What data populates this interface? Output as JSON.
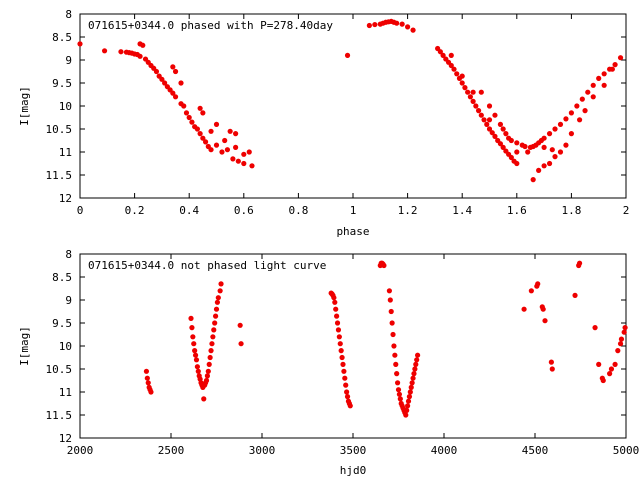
{
  "chart_data": [
    {
      "type": "scatter",
      "title": "071615+0344.0 phased with P=278.40day",
      "xlabel": "phase",
      "ylabel": "I[mag]",
      "xlim": [
        0,
        2
      ],
      "ylim": [
        12,
        8
      ],
      "y_inverted": true,
      "xticks": [
        "0",
        "0.2",
        "0.4",
        "0.6",
        "0.8",
        "1",
        "1.2",
        "1.4",
        "1.6",
        "1.8",
        "2"
      ],
      "yticks": [
        "8",
        "8.5",
        "9",
        "9.5",
        "10",
        "10.5",
        "11",
        "11.5",
        "12"
      ],
      "grid": false,
      "color": "#ee0000",
      "points": [
        [
          0.0,
          8.65
        ],
        [
          0.09,
          8.8
        ],
        [
          0.15,
          8.82
        ],
        [
          0.17,
          8.83
        ],
        [
          0.18,
          8.84
        ],
        [
          0.19,
          8.85
        ],
        [
          0.2,
          8.87
        ],
        [
          0.21,
          8.88
        ],
        [
          0.22,
          8.65
        ],
        [
          0.23,
          8.68
        ],
        [
          0.22,
          8.92
        ],
        [
          0.24,
          8.98
        ],
        [
          0.25,
          9.05
        ],
        [
          0.26,
          9.12
        ],
        [
          0.27,
          9.18
        ],
        [
          0.28,
          9.25
        ],
        [
          0.29,
          9.35
        ],
        [
          0.3,
          9.42
        ],
        [
          0.31,
          9.5
        ],
        [
          0.32,
          9.58
        ],
        [
          0.33,
          9.65
        ],
        [
          0.34,
          9.72
        ],
        [
          0.35,
          9.8
        ],
        [
          0.34,
          9.15
        ],
        [
          0.35,
          9.25
        ],
        [
          0.37,
          9.5
        ],
        [
          0.37,
          9.95
        ],
        [
          0.38,
          10.0
        ],
        [
          0.39,
          10.15
        ],
        [
          0.4,
          10.25
        ],
        [
          0.41,
          10.35
        ],
        [
          0.42,
          10.45
        ],
        [
          0.43,
          10.5
        ],
        [
          0.44,
          10.6
        ],
        [
          0.45,
          10.7
        ],
        [
          0.46,
          10.78
        ],
        [
          0.47,
          10.88
        ],
        [
          0.48,
          10.95
        ],
        [
          0.44,
          10.05
        ],
        [
          0.45,
          10.15
        ],
        [
          0.48,
          10.55
        ],
        [
          0.5,
          10.4
        ],
        [
          0.5,
          10.85
        ],
        [
          0.52,
          11.0
        ],
        [
          0.53,
          10.75
        ],
        [
          0.54,
          10.95
        ],
        [
          0.56,
          11.15
        ],
        [
          0.57,
          10.9
        ],
        [
          0.58,
          11.2
        ],
        [
          0.6,
          11.05
        ],
        [
          0.6,
          11.25
        ],
        [
          0.62,
          11.0
        ],
        [
          0.63,
          11.3
        ],
        [
          0.55,
          10.55
        ],
        [
          0.57,
          10.6
        ],
        [
          0.98,
          8.9
        ],
        [
          1.06,
          8.25
        ],
        [
          1.08,
          8.23
        ],
        [
          1.1,
          8.22
        ],
        [
          1.11,
          8.2
        ],
        [
          1.12,
          8.18
        ],
        [
          1.13,
          8.17
        ],
        [
          1.14,
          8.16
        ],
        [
          1.15,
          8.18
        ],
        [
          1.16,
          8.2
        ],
        [
          1.18,
          8.22
        ],
        [
          1.2,
          8.28
        ],
        [
          1.22,
          8.35
        ],
        [
          1.31,
          8.75
        ],
        [
          1.32,
          8.82
        ],
        [
          1.33,
          8.9
        ],
        [
          1.34,
          8.98
        ],
        [
          1.35,
          9.05
        ],
        [
          1.36,
          9.12
        ],
        [
          1.37,
          9.2
        ],
        [
          1.38,
          9.3
        ],
        [
          1.39,
          9.4
        ],
        [
          1.4,
          9.5
        ],
        [
          1.41,
          9.6
        ],
        [
          1.42,
          9.7
        ],
        [
          1.43,
          9.8
        ],
        [
          1.44,
          9.9
        ],
        [
          1.45,
          10.0
        ],
        [
          1.46,
          10.1
        ],
        [
          1.47,
          10.2
        ],
        [
          1.48,
          10.3
        ],
        [
          1.49,
          10.4
        ],
        [
          1.5,
          10.5
        ],
        [
          1.51,
          10.58
        ],
        [
          1.52,
          10.66
        ],
        [
          1.53,
          10.75
        ],
        [
          1.54,
          10.82
        ],
        [
          1.55,
          10.9
        ],
        [
          1.56,
          10.98
        ],
        [
          1.57,
          11.05
        ],
        [
          1.58,
          11.12
        ],
        [
          1.59,
          11.2
        ],
        [
          1.6,
          11.25
        ],
        [
          1.47,
          9.7
        ],
        [
          1.5,
          10.0
        ],
        [
          1.52,
          10.2
        ],
        [
          1.54,
          10.4
        ],
        [
          1.55,
          10.5
        ],
        [
          1.56,
          10.6
        ],
        [
          1.57,
          10.7
        ],
        [
          1.58,
          10.75
        ],
        [
          1.6,
          10.8
        ],
        [
          1.62,
          10.85
        ],
        [
          1.63,
          10.88
        ],
        [
          1.65,
          10.9
        ],
        [
          1.66,
          10.88
        ],
        [
          1.67,
          10.85
        ],
        [
          1.68,
          10.8
        ],
        [
          1.69,
          10.75
        ],
        [
          1.7,
          10.7
        ],
        [
          1.72,
          10.6
        ],
        [
          1.74,
          10.5
        ],
        [
          1.76,
          10.4
        ],
        [
          1.78,
          10.28
        ],
        [
          1.8,
          10.15
        ],
        [
          1.82,
          10.0
        ],
        [
          1.84,
          9.85
        ],
        [
          1.86,
          9.7
        ],
        [
          1.88,
          9.55
        ],
        [
          1.9,
          9.4
        ],
        [
          1.92,
          9.3
        ],
        [
          1.94,
          9.2
        ],
        [
          1.96,
          9.1
        ],
        [
          1.98,
          8.95
        ],
        [
          1.66,
          11.6
        ],
        [
          1.68,
          11.4
        ],
        [
          1.7,
          11.3
        ],
        [
          1.72,
          11.25
        ],
        [
          1.74,
          11.1
        ],
        [
          1.76,
          11.0
        ],
        [
          1.78,
          10.85
        ],
        [
          1.8,
          10.6
        ],
        [
          1.83,
          10.3
        ],
        [
          1.85,
          10.1
        ],
        [
          1.88,
          9.8
        ],
        [
          1.92,
          9.55
        ],
        [
          1.95,
          9.2
        ],
        [
          1.36,
          8.9
        ],
        [
          1.4,
          9.35
        ],
        [
          1.44,
          9.7
        ],
        [
          1.5,
          10.3
        ],
        [
          1.6,
          11.0
        ],
        [
          1.64,
          11.0
        ],
        [
          1.7,
          10.9
        ],
        [
          1.73,
          10.95
        ]
      ]
    },
    {
      "type": "scatter",
      "title": "071615+0344.0 not phased light curve",
      "xlabel": "hjd0",
      "ylabel": "I[mag]",
      "xlim": [
        2000,
        5000
      ],
      "ylim": [
        12,
        8
      ],
      "y_inverted": true,
      "xticks": [
        "2000",
        "2500",
        "3000",
        "3500",
        "4000",
        "4500",
        "5000"
      ],
      "yticks": [
        "8",
        "8.5",
        "9",
        "9.5",
        "10",
        "10.5",
        "11",
        "11.5",
        "12"
      ],
      "grid": false,
      "color": "#ee0000",
      "points": [
        [
          2365,
          10.55
        ],
        [
          2370,
          10.7
        ],
        [
          2375,
          10.8
        ],
        [
          2380,
          10.9
        ],
        [
          2385,
          10.95
        ],
        [
          2390,
          11.0
        ],
        [
          2610,
          9.4
        ],
        [
          2615,
          9.6
        ],
        [
          2620,
          9.8
        ],
        [
          2625,
          9.95
        ],
        [
          2630,
          10.1
        ],
        [
          2635,
          10.2
        ],
        [
          2640,
          10.3
        ],
        [
          2645,
          10.45
        ],
        [
          2650,
          10.55
        ],
        [
          2655,
          10.65
        ],
        [
          2660,
          10.72
        ],
        [
          2665,
          10.8
        ],
        [
          2670,
          10.85
        ],
        [
          2675,
          10.9
        ],
        [
          2680,
          11.15
        ],
        [
          2685,
          10.85
        ],
        [
          2690,
          10.8
        ],
        [
          2695,
          10.75
        ],
        [
          2700,
          10.65
        ],
        [
          2705,
          10.55
        ],
        [
          2710,
          10.4
        ],
        [
          2715,
          10.25
        ],
        [
          2720,
          10.1
        ],
        [
          2725,
          9.95
        ],
        [
          2730,
          9.8
        ],
        [
          2735,
          9.65
        ],
        [
          2740,
          9.5
        ],
        [
          2745,
          9.35
        ],
        [
          2750,
          9.2
        ],
        [
          2755,
          9.05
        ],
        [
          2760,
          8.95
        ],
        [
          2770,
          8.8
        ],
        [
          2775,
          8.65
        ],
        [
          2880,
          9.55
        ],
        [
          2885,
          9.95
        ],
        [
          3380,
          8.85
        ],
        [
          3385,
          8.87
        ],
        [
          3390,
          8.9
        ],
        [
          3395,
          8.95
        ],
        [
          3400,
          9.05
        ],
        [
          3405,
          9.2
        ],
        [
          3410,
          9.35
        ],
        [
          3415,
          9.5
        ],
        [
          3420,
          9.65
        ],
        [
          3425,
          9.8
        ],
        [
          3430,
          9.95
        ],
        [
          3435,
          10.1
        ],
        [
          3440,
          10.25
        ],
        [
          3445,
          10.4
        ],
        [
          3450,
          10.55
        ],
        [
          3455,
          10.7
        ],
        [
          3460,
          10.85
        ],
        [
          3465,
          11.0
        ],
        [
          3470,
          11.1
        ],
        [
          3475,
          11.2
        ],
        [
          3480,
          11.25
        ],
        [
          3485,
          11.3
        ],
        [
          3650,
          8.25
        ],
        [
          3655,
          8.2
        ],
        [
          3660,
          8.2
        ],
        [
          3665,
          8.22
        ],
        [
          3670,
          8.25
        ],
        [
          3700,
          8.8
        ],
        [
          3705,
          9.0
        ],
        [
          3710,
          9.25
        ],
        [
          3715,
          9.5
        ],
        [
          3720,
          9.75
        ],
        [
          3725,
          10.0
        ],
        [
          3730,
          10.2
        ],
        [
          3735,
          10.4
        ],
        [
          3740,
          10.6
        ],
        [
          3745,
          10.8
        ],
        [
          3750,
          10.95
        ],
        [
          3755,
          11.05
        ],
        [
          3760,
          11.15
        ],
        [
          3765,
          11.25
        ],
        [
          3770,
          11.3
        ],
        [
          3775,
          11.35
        ],
        [
          3780,
          11.4
        ],
        [
          3785,
          11.45
        ],
        [
          3790,
          11.5
        ],
        [
          3795,
          11.4
        ],
        [
          3800,
          11.3
        ],
        [
          3805,
          11.2
        ],
        [
          3810,
          11.1
        ],
        [
          3815,
          11.0
        ],
        [
          3820,
          10.9
        ],
        [
          3825,
          10.8
        ],
        [
          3830,
          10.7
        ],
        [
          3835,
          10.6
        ],
        [
          3840,
          10.5
        ],
        [
          3845,
          10.4
        ],
        [
          3850,
          10.3
        ],
        [
          3855,
          10.2
        ],
        [
          4440,
          9.2
        ],
        [
          4480,
          8.8
        ],
        [
          4510,
          8.7
        ],
        [
          4515,
          8.65
        ],
        [
          4540,
          9.15
        ],
        [
          4545,
          9.2
        ],
        [
          4555,
          9.45
        ],
        [
          4590,
          10.35
        ],
        [
          4595,
          10.5
        ],
        [
          4720,
          8.9
        ],
        [
          4740,
          8.25
        ],
        [
          4745,
          8.2
        ],
        [
          4830,
          9.6
        ],
        [
          4850,
          10.4
        ],
        [
          4870,
          10.7
        ],
        [
          4875,
          10.75
        ],
        [
          4910,
          10.6
        ],
        [
          4920,
          10.5
        ],
        [
          4940,
          10.4
        ],
        [
          4955,
          10.1
        ],
        [
          4970,
          9.95
        ],
        [
          4975,
          9.85
        ],
        [
          4990,
          9.7
        ],
        [
          4995,
          9.6
        ]
      ]
    }
  ]
}
